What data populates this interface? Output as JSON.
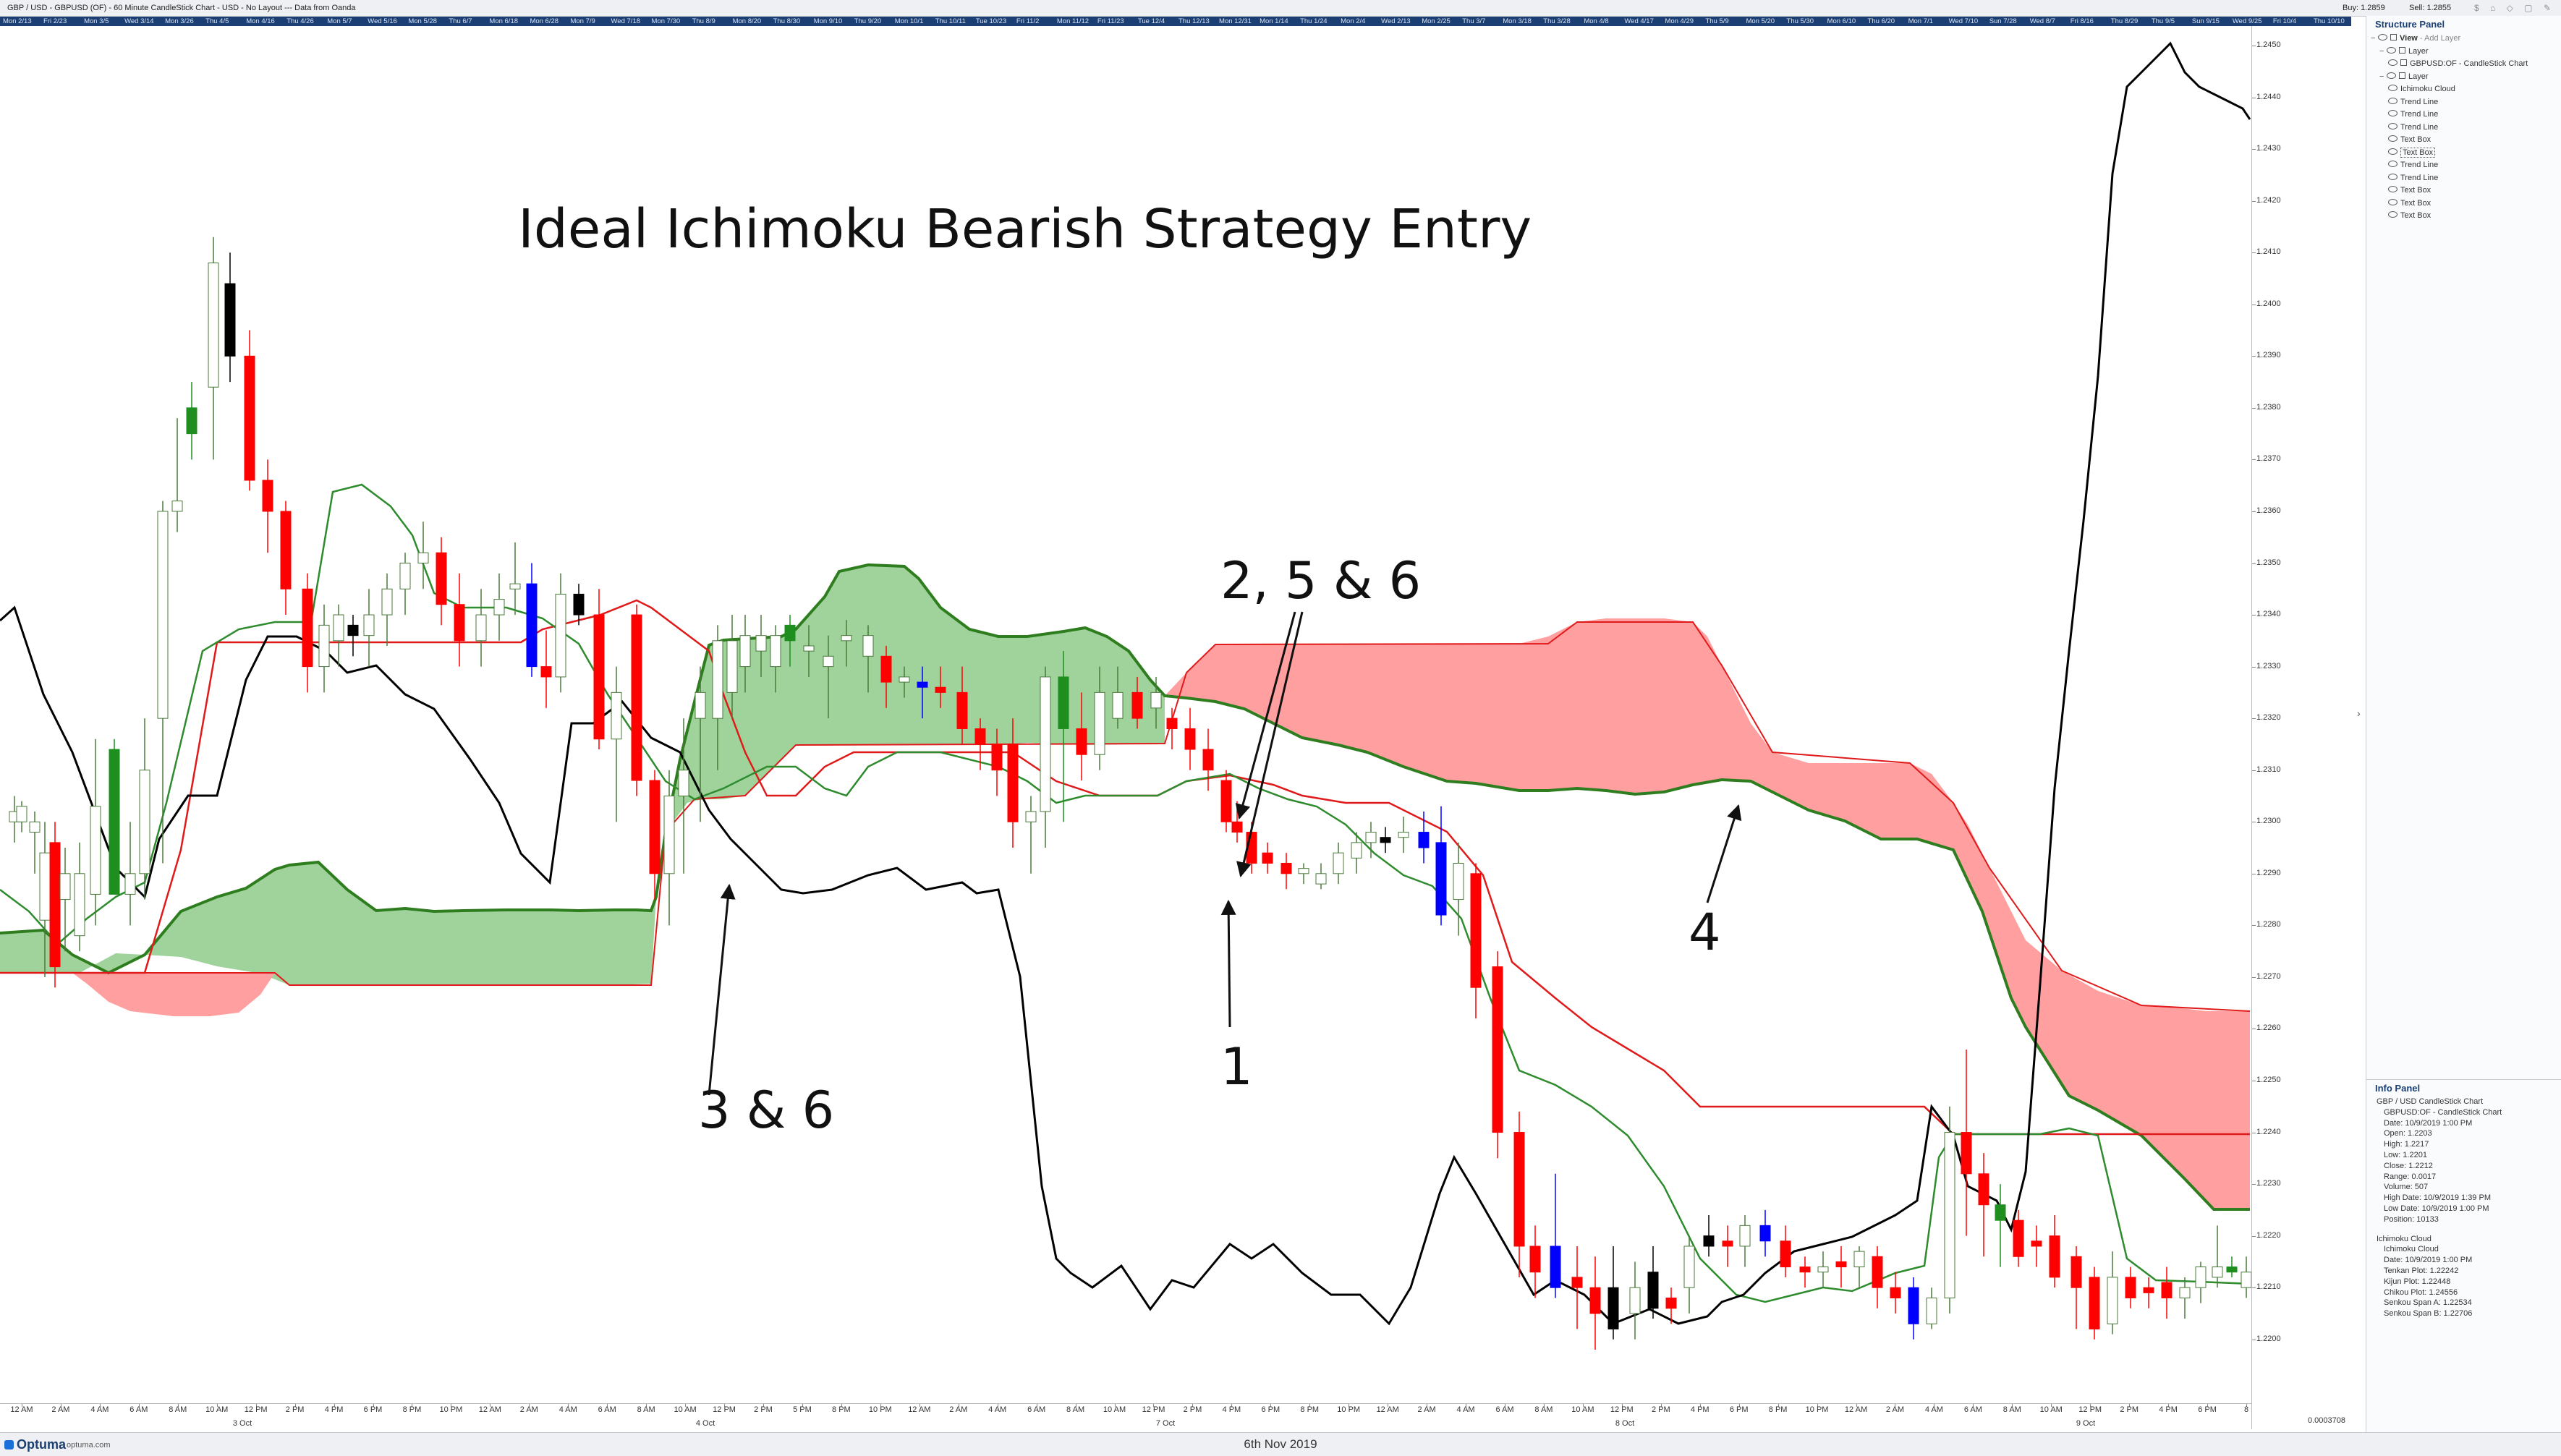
{
  "titlebar": {
    "title": "GBP / USD - GBPUSD (OF) - 60 Minute CandleStick Chart - USD - No Layout --- Data from Oanda",
    "buy": "Buy: 1.2859",
    "sell": "Sell: 1.2855"
  },
  "datebar": [
    "Mon 2/13",
    "Fri 2/23",
    "Mon 3/5",
    "Wed 3/14",
    "Mon 3/26",
    "Thu 4/5",
    "Mon 4/16",
    "Thu 4/26",
    "Mon 5/7",
    "Wed 5/16",
    "Mon 5/28",
    "Thu 6/7",
    "Mon 6/18",
    "Mon 6/28",
    "Mon 7/9",
    "Wed 7/18",
    "Mon 7/30",
    "Thu 8/9",
    "Mon 8/20",
    "Thu 8/30",
    "Mon 9/10",
    "Thu 9/20",
    "Mon 10/1",
    "Thu 10/11",
    "Tue 10/23",
    "Fri 11/2",
    "Mon 11/12",
    "Fri 11/23",
    "Tue 12/4",
    "Thu 12/13",
    "Mon 12/31",
    "Mon 1/14",
    "Thu 1/24",
    "Mon 2/4",
    "Wed 2/13",
    "Mon 2/25",
    "Thu 3/7",
    "Mon 3/18",
    "Thu 3/28",
    "Mon 4/8",
    "Wed 4/17",
    "Mon 4/29",
    "Thu 5/9",
    "Mon 5/20",
    "Thu 5/30",
    "Mon 6/10",
    "Thu 6/20",
    "Mon 7/1",
    "Wed 7/10",
    "Sun 7/28",
    "Wed 8/7",
    "Fri 8/16",
    "Thu 8/29",
    "Thu 9/5",
    "Sun 9/15",
    "Wed 9/25",
    "Fri 10/4",
    "Thu 10/10"
  ],
  "chart": {
    "annotations": {
      "title": "Ideal Ichimoku Bearish Strategy Entry",
      "label_1": "1",
      "label_2": "2, 5 & 6",
      "label_3": "3 & 6",
      "label_4": "4"
    },
    "colors": {
      "bull_cloud": "#9fd39b",
      "bear_cloud": "#ff9fa0",
      "span_a": "#2e7d1f",
      "kijun": "#e01a1a",
      "tenkan": "#2e8b2e",
      "chikou": "#000000",
      "candle_red": "#ff0000",
      "candle_green": "#1e8f1e",
      "candle_blue": "#0000ff",
      "candle_black": "#000000"
    }
  },
  "price_axis": {
    "labels": [
      "1.2450",
      "1.2440",
      "1.2430",
      "1.2420",
      "1.2410",
      "1.2400",
      "1.2390",
      "1.2380",
      "1.2370",
      "1.2360",
      "1.2350",
      "1.2340",
      "1.2330",
      "1.2320",
      "1.2310",
      "1.2300",
      "1.2290",
      "1.2280",
      "1.2270",
      "1.2260",
      "1.2250",
      "1.2240",
      "1.2230",
      "1.2220",
      "1.2210",
      "1.2200"
    ],
    "min": 1.2195,
    "max": 1.2455
  },
  "time_axis": {
    "hours": [
      "12 AM",
      "2 AM",
      "4 AM",
      "6 AM",
      "8 AM",
      "10 AM",
      "12 PM",
      "2 PM",
      "4 PM",
      "6 PM",
      "8 PM",
      "10 PM",
      "12 AM",
      "2 AM",
      "4 AM",
      "6 AM",
      "8 AM",
      "10 AM",
      "12 PM",
      "2 PM",
      "5 PM",
      "8 PM",
      "10 PM",
      "12 AM",
      "2 AM",
      "4 AM",
      "6 AM",
      "8 AM",
      "10 AM",
      "12 PM",
      "2 PM",
      "4 PM",
      "6 PM",
      "8 PM",
      "10 PM",
      "12 AM",
      "2 AM",
      "4 AM",
      "6 AM",
      "8 AM",
      "10 AM",
      "12 PM",
      "2 PM",
      "4 PM",
      "6 PM",
      "8 PM",
      "10 PM",
      "12 AM",
      "2 AM",
      "4 AM",
      "6 AM",
      "8 AM",
      "10 AM",
      "12 PM",
      "2 PM",
      "4 PM",
      "6 PM",
      "8"
    ],
    "days": [
      "3 Oct",
      "4 Oct",
      "7 Oct",
      "8 Oct",
      "9 Oct"
    ],
    "scale_readout": "0.0003708"
  },
  "footer": {
    "logo": "Optuma",
    "logo_sub": "optuma.com",
    "date": "6th Nov 2019"
  },
  "structure_panel": {
    "title": "Structure Panel",
    "items": [
      {
        "label": "View",
        "sub": " - Add Layer",
        "level": 0
      },
      {
        "label": "Layer",
        "sub": "",
        "level": 1
      },
      {
        "label": "GBPUSD:OF - CandleStick Chart",
        "sub": "",
        "level": 2
      },
      {
        "label": "Layer",
        "sub": "",
        "level": 1
      },
      {
        "label": "Ichimoku Cloud",
        "sub": "",
        "level": 2
      },
      {
        "label": "Trend Line",
        "sub": "",
        "level": 2
      },
      {
        "label": "Trend Line",
        "sub": "",
        "level": 2
      },
      {
        "label": "Trend Line",
        "sub": "",
        "level": 2
      },
      {
        "label": "Text Box",
        "sub": "",
        "level": 2
      },
      {
        "label": "Text Box",
        "sub": "",
        "level": 2
      },
      {
        "label": "Trend Line",
        "sub": "",
        "level": 2
      },
      {
        "label": "Trend Line",
        "sub": "",
        "level": 2
      },
      {
        "label": "Text Box",
        "sub": "",
        "level": 2
      },
      {
        "label": "Text Box",
        "sub": "",
        "level": 2
      },
      {
        "label": "Text Box",
        "sub": "",
        "level": 2
      }
    ]
  },
  "info_panel": {
    "title": "Info Panel",
    "lines": [
      {
        "text": "GBP / USD CandleStick Chart",
        "level": 1
      },
      {
        "text": "GBPUSD:OF - CandleStick Chart",
        "level": 2
      },
      {
        "text": "Date: 10/9/2019 1:00 PM",
        "level": 2
      },
      {
        "text": "Open: 1.2203",
        "level": 2
      },
      {
        "text": "High: 1.2217",
        "level": 2
      },
      {
        "text": "Low: 1.2201",
        "level": 2
      },
      {
        "text": "Close: 1.2212",
        "level": 2
      },
      {
        "text": "Range: 0.0017",
        "level": 2
      },
      {
        "text": "Volume: 507",
        "level": 2
      },
      {
        "text": "High Date: 10/9/2019 1:39 PM",
        "level": 2
      },
      {
        "text": "Low Date: 10/9/2019 1:00 PM",
        "level": 2
      },
      {
        "text": "Position: 10133",
        "level": 2
      },
      {
        "text": "",
        "level": 0
      },
      {
        "text": "Ichimoku Cloud",
        "level": 1
      },
      {
        "text": "Ichimoku Cloud",
        "level": 2
      },
      {
        "text": "Date: 10/9/2019 1:00 PM",
        "level": 2
      },
      {
        "text": "Tenkan Plot: 1.22242",
        "level": 2
      },
      {
        "text": "Kijun Plot: 1.22448",
        "level": 2
      },
      {
        "text": "Chikou Plot: 1.24556",
        "level": 2
      },
      {
        "text": "Senkou Span A: 1.22534",
        "level": 2
      },
      {
        "text": "Senkou Span B: 1.22706",
        "level": 2
      }
    ]
  }
}
